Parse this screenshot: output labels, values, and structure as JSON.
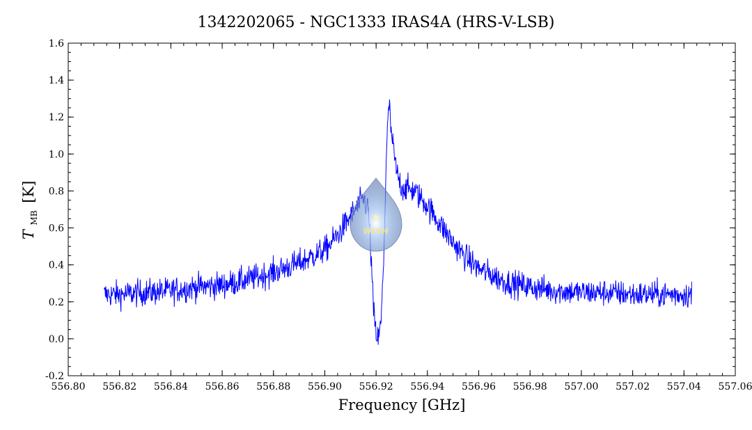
{
  "chart_data": {
    "type": "line",
    "title": "1342202065 - NGC1333 IRAS4A (HRS-V-LSB)",
    "xlabel": "Frequency [GHz]",
    "ylabel_main": "T",
    "ylabel_sub": "MB",
    "ylabel_unit": "[K]",
    "xlim": [
      556.8,
      557.06
    ],
    "ylim": [
      -0.2,
      1.6
    ],
    "x_ticks": [
      "556.80",
      "556.82",
      "556.84",
      "556.86",
      "556.88",
      "556.90",
      "556.92",
      "556.94",
      "556.96",
      "556.98",
      "557.00",
      "557.02",
      "557.04",
      "557.06"
    ],
    "y_ticks": [
      "-0.2",
      "0.0",
      "0.2",
      "0.4",
      "0.6",
      "0.8",
      "1.0",
      "1.2",
      "1.4",
      "1.6"
    ],
    "grid": false,
    "series": [
      {
        "color": "#0000ff",
        "x": [
          556.814,
          556.82,
          556.83,
          556.84,
          556.85,
          556.86,
          556.87,
          556.88,
          556.89,
          556.9,
          556.905,
          556.91,
          556.915,
          556.917,
          556.918,
          556.919,
          556.92,
          556.921,
          556.922,
          556.923,
          556.924,
          556.925,
          556.926,
          556.928,
          556.93,
          556.935,
          556.94,
          556.945,
          556.95,
          556.955,
          556.96,
          556.97,
          556.98,
          556.99,
          557.0,
          557.01,
          557.02,
          557.03,
          557.043
        ],
        "values": [
          0.24,
          0.24,
          0.25,
          0.26,
          0.28,
          0.29,
          0.32,
          0.36,
          0.41,
          0.48,
          0.56,
          0.66,
          0.76,
          0.7,
          0.45,
          0.15,
          0.02,
          0.0,
          0.1,
          0.45,
          1.0,
          1.28,
          1.1,
          0.9,
          0.82,
          0.8,
          0.72,
          0.62,
          0.52,
          0.44,
          0.38,
          0.31,
          0.28,
          0.26,
          0.25,
          0.25,
          0.24,
          0.24,
          0.24
        ]
      }
    ],
    "logo_text": "WISH"
  }
}
